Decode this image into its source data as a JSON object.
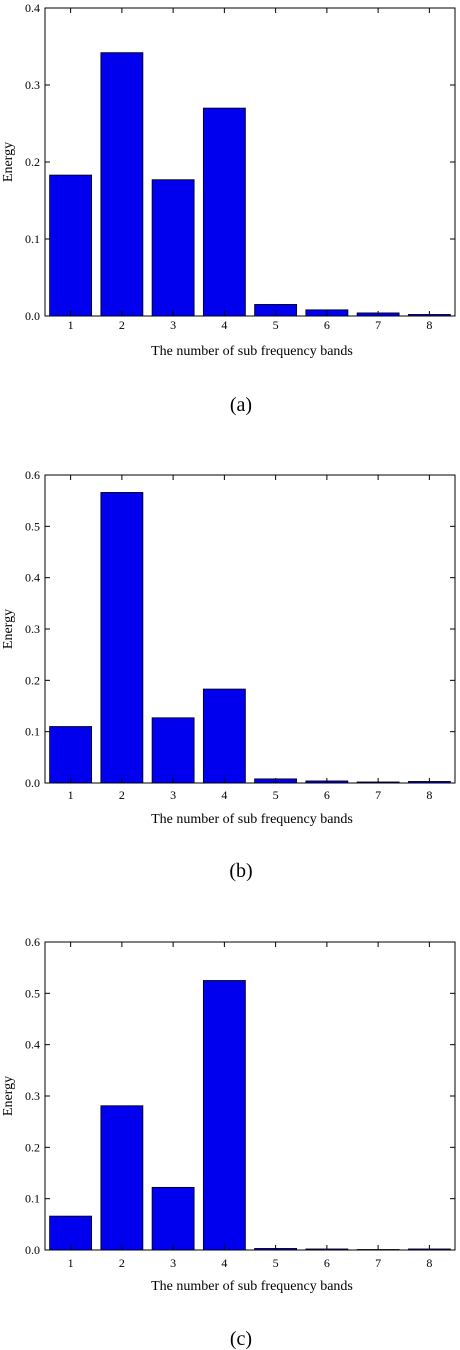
{
  "chart_data": [
    {
      "type": "bar",
      "panel_label": "(a)",
      "categories": [
        "1",
        "2",
        "3",
        "4",
        "5",
        "6",
        "7",
        "8"
      ],
      "values": [
        0.183,
        0.342,
        0.177,
        0.27,
        0.015,
        0.008,
        0.004,
        0.002
      ],
      "xlabel": "The number of sub frequency bands",
      "ylabel": "Energy",
      "ylim": [
        0,
        0.4
      ],
      "yticks": [
        "0.0",
        "0.1",
        "0.2",
        "0.3",
        "0.4"
      ],
      "color": "#0000ee",
      "grid": false
    },
    {
      "type": "bar",
      "panel_label": "(b)",
      "categories": [
        "1",
        "2",
        "3",
        "4",
        "5",
        "6",
        "7",
        "8"
      ],
      "values": [
        0.11,
        0.566,
        0.127,
        0.183,
        0.008,
        0.004,
        0.002,
        0.003
      ],
      "xlabel": "The number of sub frequency bands",
      "ylabel": "Energy",
      "ylim": [
        0,
        0.6
      ],
      "yticks": [
        "0.0",
        "0.1",
        "0.2",
        "0.3",
        "0.4",
        "0.5",
        "0.6"
      ],
      "color": "#0000ee",
      "grid": false
    },
    {
      "type": "bar",
      "panel_label": "(c)",
      "categories": [
        "1",
        "2",
        "3",
        "4",
        "5",
        "6",
        "7",
        "8"
      ],
      "values": [
        0.066,
        0.281,
        0.122,
        0.525,
        0.003,
        0.002,
        0.001,
        0.002
      ],
      "xlabel": "The number of sub frequency bands",
      "ylabel": "Energy",
      "ylim": [
        0,
        0.6
      ],
      "yticks": [
        "0.0",
        "0.1",
        "0.2",
        "0.3",
        "0.4",
        "0.5",
        "0.6"
      ],
      "color": "#0000ee",
      "grid": false
    }
  ]
}
